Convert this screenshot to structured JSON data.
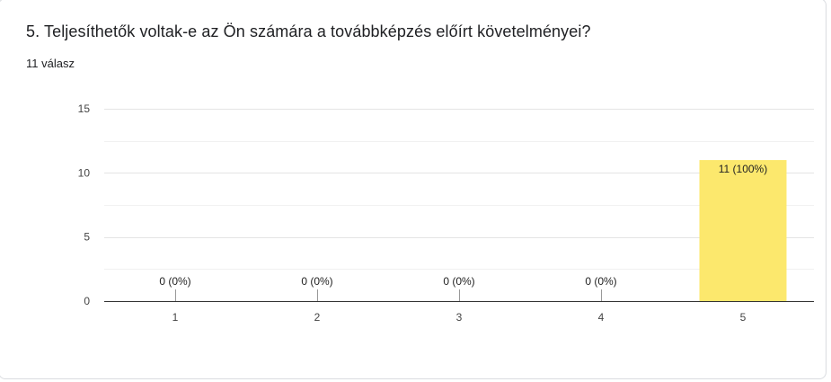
{
  "question": {
    "title": "5. Teljesíthetők voltak-e az Ön számára a továbbképzés előírt követelményei?",
    "responses": "11 válasz"
  },
  "colors": {
    "bar": "#fce86d",
    "grid": "#ebebeb",
    "axis": "#333333"
  },
  "chart_data": {
    "type": "bar",
    "categories": [
      "1",
      "2",
      "3",
      "4",
      "5"
    ],
    "values": [
      0,
      0,
      0,
      0,
      11
    ],
    "labels": [
      "0 (0%)",
      "0 (0%)",
      "0 (0%)",
      "0 (0%)",
      "11 (100%)"
    ],
    "ylim": [
      0,
      15
    ],
    "yticks": [
      0,
      5,
      10,
      15
    ],
    "grid": true,
    "title": "",
    "xlabel": "",
    "ylabel": ""
  }
}
